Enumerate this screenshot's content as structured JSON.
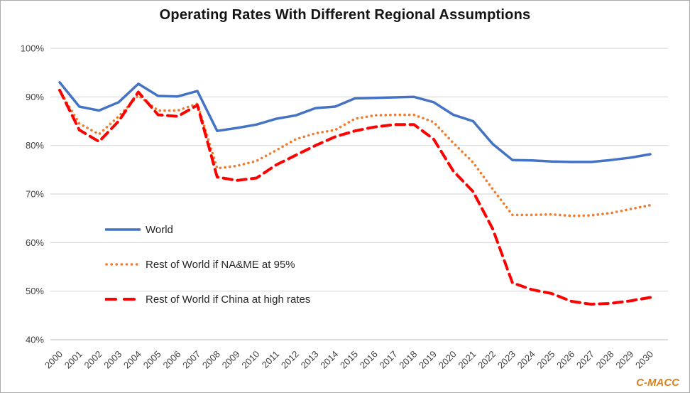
{
  "title": "Operating Rates With Different Regional Assumptions",
  "watermark": "C-MACC",
  "colors": {
    "background": "#FFFFFF",
    "border": "#ABABAB",
    "grid": "#D9D9D9",
    "axis_line": "#C8C8C8",
    "axis_text": "#404040",
    "title_text": "#141414",
    "legend_text": "#262626",
    "watermark": "#DD8220"
  },
  "chart_data": {
    "type": "line",
    "title": "Operating Rates With Different Regional Assumptions",
    "xlabel": "",
    "ylabel": "",
    "grid": "horizontal-only",
    "legend_position": "inside-left",
    "ylim": [
      40,
      100
    ],
    "ytick_step": 10,
    "ytick_labels": [
      "100%",
      "90%",
      "80%",
      "70%",
      "60%",
      "50%",
      "40%"
    ],
    "x": [
      2000,
      2001,
      2002,
      2003,
      2004,
      2005,
      2006,
      2007,
      2008,
      2009,
      2010,
      2011,
      2012,
      2013,
      2014,
      2015,
      2016,
      2017,
      2018,
      2019,
      2020,
      2021,
      2022,
      2023,
      2024,
      2025,
      2026,
      2027,
      2028,
      2029,
      2030
    ],
    "series": [
      {
        "name": "World",
        "line_style": "solid",
        "color": "#4472C4",
        "values": [
          93.0,
          88.0,
          87.2,
          88.9,
          92.7,
          90.2,
          90.1,
          91.2,
          83.0,
          83.6,
          84.3,
          85.5,
          86.2,
          87.7,
          88.0,
          89.7,
          89.8,
          89.9,
          90.0,
          88.9,
          86.3,
          85.0,
          80.3,
          77.0,
          76.9,
          76.7,
          76.6,
          76.6,
          77.0,
          77.5,
          78.2
        ]
      },
      {
        "name": "Rest of World if NA&ME at 95%",
        "line_style": "dotted",
        "color": "#ED7D31",
        "values": [
          91.3,
          84.5,
          82.3,
          86.0,
          90.3,
          87.2,
          87.2,
          88.6,
          75.3,
          75.8,
          76.8,
          79.0,
          81.3,
          82.5,
          83.2,
          85.5,
          86.2,
          86.3,
          86.3,
          84.8,
          80.5,
          76.5,
          71.0,
          65.7,
          65.7,
          65.8,
          65.5,
          65.6,
          66.1,
          66.9,
          67.7
        ]
      },
      {
        "name": "Rest of World if China at high rates",
        "line_style": "dashed",
        "color": "#FF0000",
        "values": [
          91.4,
          83.2,
          80.8,
          85.0,
          91.0,
          86.3,
          86.0,
          88.3,
          73.5,
          72.8,
          73.3,
          76.0,
          78.0,
          80.0,
          81.8,
          83.0,
          83.8,
          84.3,
          84.3,
          81.3,
          74.7,
          70.5,
          62.8,
          51.7,
          50.3,
          49.5,
          47.9,
          47.3,
          47.5,
          48.0,
          48.7
        ]
      }
    ]
  }
}
